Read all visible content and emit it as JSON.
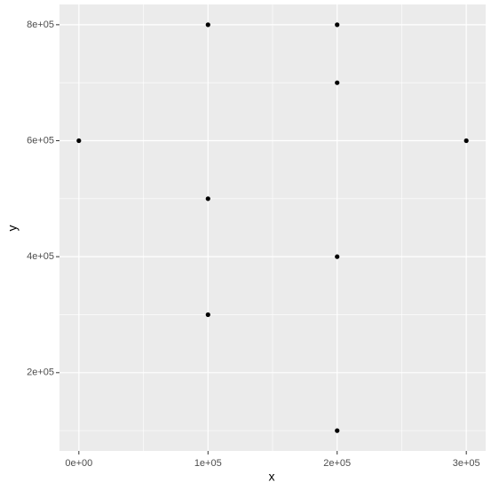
{
  "chart_data": {
    "type": "scatter",
    "x_label": "x",
    "y_label": "y",
    "x": [
      0,
      100000,
      100000,
      100000,
      200000,
      200000,
      200000,
      200000,
      300000
    ],
    "values": [
      600000,
      800000,
      500000,
      300000,
      800000,
      700000,
      400000,
      100000,
      600000
    ],
    "color": "#000000",
    "panel_color": "#ebebeb",
    "grid": true,
    "xlim": [
      -15000,
      315000
    ],
    "ylim": [
      65000,
      835000
    ],
    "xticks": [
      {
        "value": 0,
        "label": "0e+00"
      },
      {
        "value": 100000,
        "label": "1e+05"
      },
      {
        "value": 200000,
        "label": "2e+05"
      },
      {
        "value": 300000,
        "label": "3e+05"
      }
    ],
    "yticks": [
      {
        "value": 200000,
        "label": "2e+05"
      },
      {
        "value": 400000,
        "label": "4e+05"
      },
      {
        "value": 600000,
        "label": "6e+05"
      },
      {
        "value": 800000,
        "label": "8e+05"
      }
    ],
    "xminor": [
      50000,
      150000,
      250000
    ],
    "yminor": [
      100000,
      300000,
      500000,
      700000
    ]
  }
}
